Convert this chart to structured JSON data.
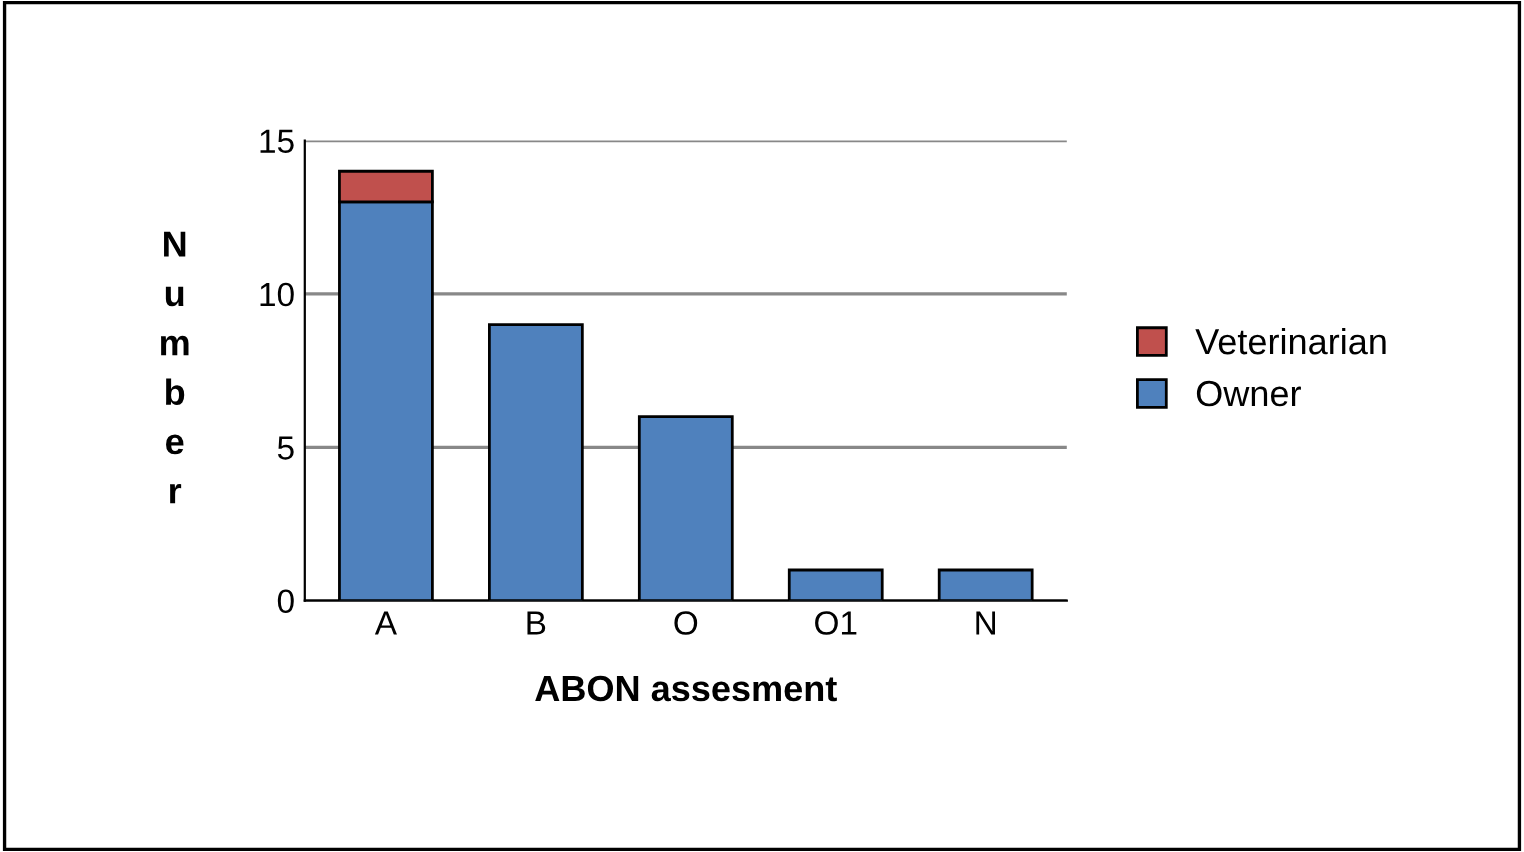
{
  "chart_data": {
    "type": "bar",
    "stacked": true,
    "xlabel": "ABON assesment",
    "ylabel": "Number",
    "categories": [
      "A",
      "B",
      "O",
      "O1",
      "N"
    ],
    "series": [
      {
        "name": "Owner",
        "color": "#4f81bd",
        "values": [
          13,
          9,
          6,
          1,
          1
        ]
      },
      {
        "name": "Veterinarian",
        "color": "#c0504d",
        "values": [
          1,
          0,
          0,
          0,
          0
        ]
      }
    ],
    "ylim": [
      0,
      15
    ],
    "yticks": [
      0,
      5,
      10,
      15
    ],
    "grid": "y",
    "legend": "right"
  }
}
